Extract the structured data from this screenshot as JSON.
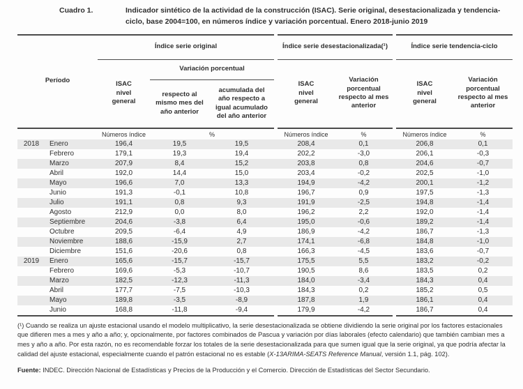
{
  "title": {
    "label": "Cuadro 1.",
    "text": "Indicador sintético de la actividad de la construcción (ISAC). Serie original, desestacionalizada y tendencia-ciclo, base 2004=100, en números índice y variación porcentual. Enero 2018-junio 2019"
  },
  "table": {
    "period": "Período",
    "groups": {
      "original": {
        "title": "Índice serie original",
        "isac": "ISAC\nnivel\ngeneral",
        "variacion": "Variación porcentual",
        "col_mismo_mes": "respecto al\nmismo mes del\naño anterior",
        "col_acumulada": "acumulada del\naño respecto a\nigual acumulado\ndel año anterior"
      },
      "desestacionalizada": {
        "title": "Índice serie desestacionalizada(¹)",
        "isac": "ISAC\nnivel\ngeneral",
        "variacion": "Variación\nporcentual\nrespecto al mes\nanterior"
      },
      "tendencia": {
        "title": "Índice serie tendencia-ciclo",
        "isac": "ISAC\nnivel\ngeneral",
        "variacion": "Variación\nporcentual\nrespecto al mes\nanterior"
      }
    },
    "units": {
      "numeros": "Números índice",
      "pct": "%"
    },
    "rows": [
      {
        "year": "2018",
        "month": "Enero",
        "values": [
          "196,4",
          "19,5",
          "19,5",
          "208,4",
          "0,1",
          "206,8",
          "0,1"
        ]
      },
      {
        "year": "",
        "month": "Febrero",
        "values": [
          "179,1",
          "19,3",
          "19,4",
          "202,2",
          "-3,0",
          "206,1",
          "-0,3"
        ]
      },
      {
        "year": "",
        "month": "Marzo",
        "values": [
          "207,9",
          "8,4",
          "15,2",
          "203,8",
          "0,8",
          "204,6",
          "-0,7"
        ]
      },
      {
        "year": "",
        "month": "Abril",
        "values": [
          "192,0",
          "14,4",
          "15,0",
          "203,4",
          "-0,2",
          "202,5",
          "-1,0"
        ]
      },
      {
        "year": "",
        "month": "Mayo",
        "values": [
          "196,6",
          "7,0",
          "13,3",
          "194,9",
          "-4,2",
          "200,1",
          "-1,2"
        ]
      },
      {
        "year": "",
        "month": "Junio",
        "values": [
          "191,3",
          "-0,1",
          "10,8",
          "196,7",
          "0,9",
          "197,5",
          "-1,3"
        ]
      },
      {
        "year": "",
        "month": "Julio",
        "values": [
          "191,1",
          "0,8",
          "9,3",
          "191,9",
          "-2,5",
          "194,8",
          "-1,4"
        ]
      },
      {
        "year": "",
        "month": "Agosto",
        "values": [
          "212,9",
          "0,0",
          "8,0",
          "196,2",
          "2,2",
          "192,0",
          "-1,4"
        ]
      },
      {
        "year": "",
        "month": "Septiembre",
        "values": [
          "204,6",
          "-3,8",
          "6,4",
          "195,0",
          "-0,6",
          "189,2",
          "-1,4"
        ]
      },
      {
        "year": "",
        "month": "Octubre",
        "values": [
          "209,5",
          "-6,4",
          "4,9",
          "186,9",
          "-4,2",
          "186,7",
          "-1,3"
        ]
      },
      {
        "year": "",
        "month": "Noviembre",
        "values": [
          "188,6",
          "-15,9",
          "2,7",
          "174,1",
          "-6,8",
          "184,8",
          "-1,0"
        ]
      },
      {
        "year": "",
        "month": "Diciembre",
        "values": [
          "151,6",
          "-20,6",
          "0,8",
          "166,3",
          "-4,5",
          "183,6",
          "-0,7"
        ]
      },
      {
        "year": "2019",
        "month": "Enero",
        "values": [
          "165,6",
          "-15,7",
          "-15,7",
          "175,5",
          "5,5",
          "183,2",
          "-0,2"
        ]
      },
      {
        "year": "",
        "month": "Febrero",
        "values": [
          "169,6",
          "-5,3",
          "-10,7",
          "190,5",
          "8,6",
          "183,5",
          "0,2"
        ]
      },
      {
        "year": "",
        "month": "Marzo",
        "values": [
          "182,5",
          "-12,3",
          "-11,3",
          "184,0",
          "-3,4",
          "184,3",
          "0,4"
        ]
      },
      {
        "year": "",
        "month": "Abril",
        "values": [
          "177,7",
          "-7,5",
          "-10,3",
          "184,3",
          "0,2",
          "185,2",
          "0,5"
        ]
      },
      {
        "year": "",
        "month": "Mayo",
        "values": [
          "189,8",
          "-3,5",
          "-8,9",
          "187,8",
          "1,9",
          "186,1",
          "0,4"
        ]
      },
      {
        "year": "",
        "month": "Junio",
        "values": [
          "168,8",
          "-11,8",
          "-9,4",
          "179,9",
          "-4,2",
          "186,7",
          "0,4"
        ]
      }
    ]
  },
  "footnote": {
    "text": "(¹) Cuando se realiza un ajuste estacional usando el modelo multiplicativo, la serie desestacionalizada se obtiene dividiendo la serie original por los factores estacionales que difieren mes a mes y año a año; y, opcionalmente, por factores combinados de Pascua y variación por días laborales (efecto calendario) que también cambian mes a mes y año a año. Por esta razón, no es recomendable forzar los totales de la serie desestacionalizada para que sumen igual que la serie original, ya que podría afectar la calidad del ajuste estacional, especialmente cuando el patrón estacional no es estable (",
    "italic": "X-13ARIMA-SEATS Reference Manual",
    "after": ", versión 1.1, pág. 102)."
  },
  "source": {
    "label": "Fuente:",
    "text": " INDEC. Dirección Nacional de Estadísticas y Precios de la Producción y el Comercio. Dirección de Estadísticas del Sector Secundario."
  }
}
